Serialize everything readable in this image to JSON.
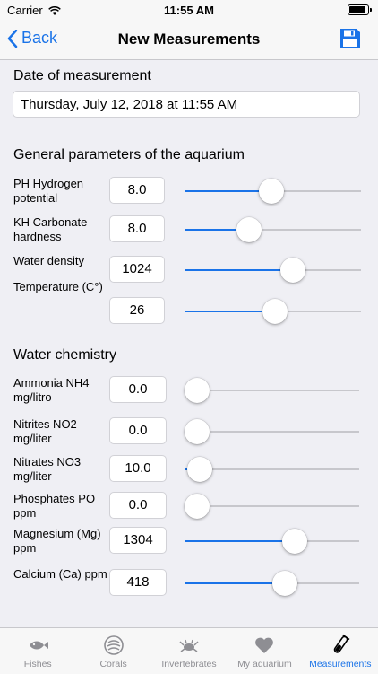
{
  "status": {
    "carrier": "Carrier",
    "time": "11:55 AM"
  },
  "nav": {
    "back_label": "Back",
    "title": "New Measurements"
  },
  "date": {
    "heading": "Date of measurement",
    "value": "Thursday, July 12, 2018 at 11:55 AM"
  },
  "general": {
    "heading": "General parameters of the aquarium",
    "rows": [
      {
        "label": "PH Hydrogen potential",
        "value": "8.0",
        "level": 0.49
      },
      {
        "label": "KH Carbonate hardness",
        "value": "8.0",
        "level": 0.36
      },
      {
        "label": "Water density",
        "value": "1024",
        "level": 0.61
      },
      {
        "label": "Temperature (C°)",
        "value": "26",
        "level": 0.51
      }
    ]
  },
  "chemistry": {
    "heading": "Water chemistry",
    "rows": [
      {
        "label": "Ammonia NH4 mg/litro",
        "value": "0.0",
        "level": 0.0
      },
      {
        "label": "Nitrites NO2 mg/liter",
        "value": "0.0",
        "level": 0.0
      },
      {
        "label": "Nitrates NO3 mg/liter",
        "value": "10.0",
        "level": 0.08
      },
      {
        "label": "Phosphates PO ppm",
        "value": "0.0",
        "level": 0.0
      },
      {
        "label": "Magnesium (Mg) ppm",
        "value": "1304",
        "level": 0.63
      },
      {
        "label": "Calcium (Ca) ppm",
        "value": "418",
        "level": 0.57
      }
    ]
  },
  "tabs": [
    {
      "label": "Fishes",
      "icon": "fish-icon"
    },
    {
      "label": "Corals",
      "icon": "coral-icon"
    },
    {
      "label": "Invertebrates",
      "icon": "crab-icon"
    },
    {
      "label": "My aquarium",
      "icon": "heart-icon"
    },
    {
      "label": "Measurements",
      "icon": "test-tube-icon",
      "active": true
    }
  ],
  "colors": {
    "accent": "#1a73e8",
    "inactive": "#8e8e93"
  }
}
